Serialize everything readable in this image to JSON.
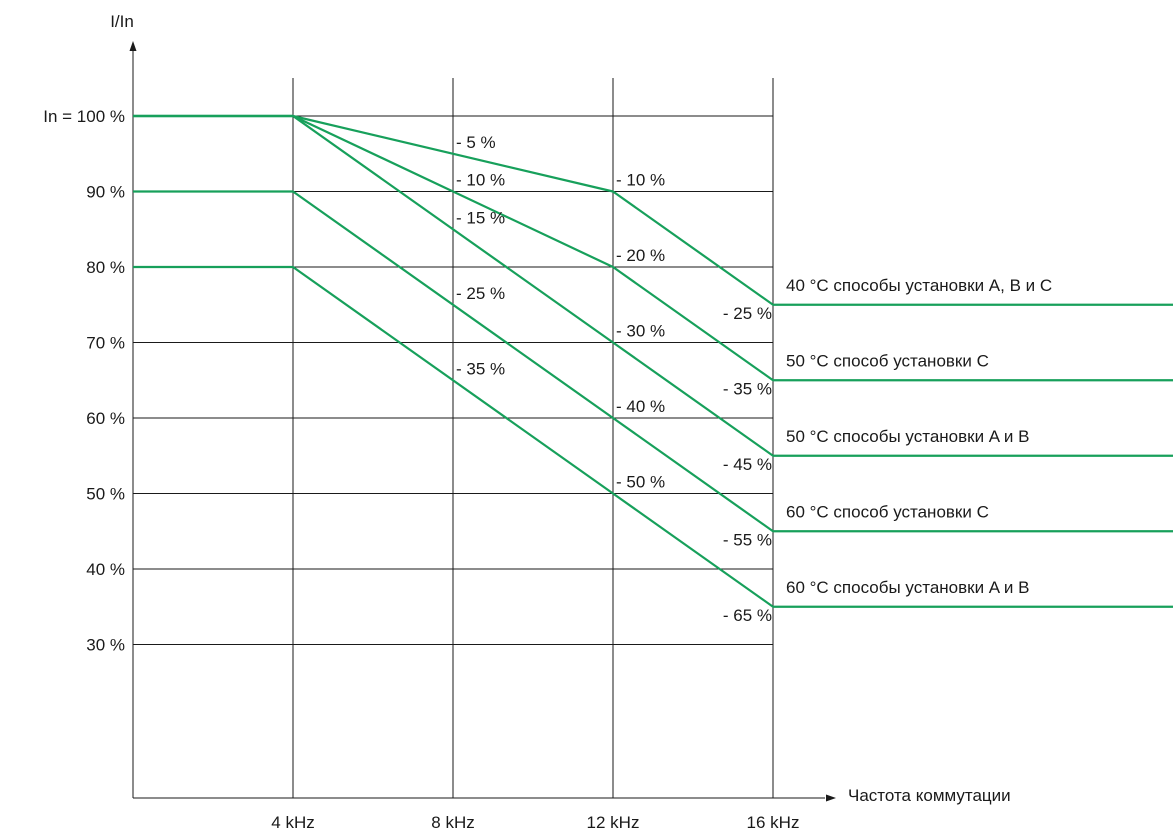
{
  "chart_data": {
    "type": "line",
    "title": "",
    "ylabel": "I/In",
    "xlabel": "Частота коммутации",
    "x_categories": [
      "4 kHz",
      "8 kHz",
      "12 kHz",
      "16 kHz"
    ],
    "x_values_khz": [
      4,
      8,
      12,
      16
    ],
    "ylim": [
      20,
      110
    ],
    "y_ticks": [
      {
        "value": 100,
        "label": "In = 100 %"
      },
      {
        "value": 90,
        "label": "90 %"
      },
      {
        "value": 80,
        "label": "80 %"
      },
      {
        "value": 70,
        "label": "70 %"
      },
      {
        "value": 60,
        "label": "60 %"
      },
      {
        "value": 50,
        "label": "50 %"
      },
      {
        "value": 40,
        "label": "40 %"
      },
      {
        "value": 30,
        "label": "30 %"
      }
    ],
    "grid": true,
    "line_color": "#17a05b",
    "series": [
      {
        "name": "40 °C способы установки A, B и C",
        "x": [
          4,
          12,
          16
        ],
        "y": [
          100,
          90,
          75
        ]
      },
      {
        "name": "50 °C способ установки C",
        "x": [
          4,
          12,
          16
        ],
        "y": [
          100,
          80,
          65
        ]
      },
      {
        "name": "50 °C способы установки A и B",
        "x": [
          4,
          12,
          16
        ],
        "y": [
          100,
          70,
          55
        ]
      },
      {
        "name": "60 °C способ установки C",
        "x": [
          4,
          12,
          16
        ],
        "y": [
          90,
          60,
          45
        ]
      },
      {
        "name": "60 °C способы установки A и B",
        "x": [
          4,
          12,
          16
        ],
        "y": [
          80,
          50,
          35
        ]
      }
    ],
    "annotations": [
      {
        "text": "- 5 %",
        "x": 8,
        "y": 95
      },
      {
        "text": "- 10 %",
        "x": 8,
        "y": 90
      },
      {
        "text": "- 15 %",
        "x": 8,
        "y": 85
      },
      {
        "text": "- 25 %",
        "x": 8,
        "y": 75
      },
      {
        "text": "- 35 %",
        "x": 8,
        "y": 65
      },
      {
        "text": "- 10 %",
        "x": 12,
        "y": 90
      },
      {
        "text": "- 20 %",
        "x": 12,
        "y": 80
      },
      {
        "text": "- 30 %",
        "x": 12,
        "y": 70
      },
      {
        "text": "- 40 %",
        "x": 12,
        "y": 60
      },
      {
        "text": "- 50 %",
        "x": 12,
        "y": 50
      },
      {
        "text": "- 25 %",
        "x": 16,
        "y": 75
      },
      {
        "text": "- 35 %",
        "x": 16,
        "y": 65
      },
      {
        "text": "- 45 %",
        "x": 16,
        "y": 55
      },
      {
        "text": "- 55 %",
        "x": 16,
        "y": 45
      },
      {
        "text": "- 65 %",
        "x": 16,
        "y": 35
      }
    ]
  }
}
